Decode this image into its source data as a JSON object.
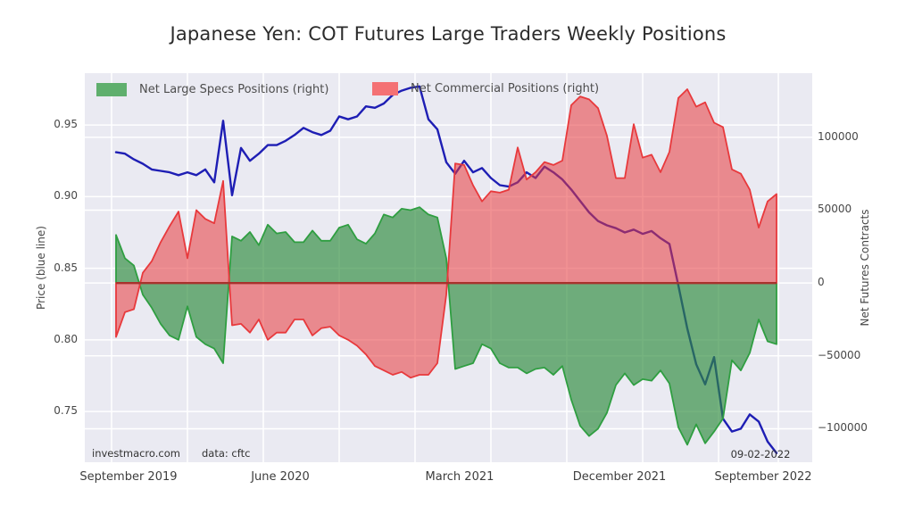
{
  "header": {
    "title": "Japanese Yen: COT Futures Large Traders Weekly Positions"
  },
  "legend": [
    {
      "label": "Net Large Specs Positions (right)",
      "color": "#5faf6d"
    },
    {
      "label": "Net Commercial Positions (right)",
      "color": "#f47174"
    }
  ],
  "annotations": {
    "watermark": "investmacro.com",
    "source": "data: cftc",
    "last_date": "09-02-2022"
  },
  "chart_data": {
    "type": "line+area",
    "title": "Japanese Yen: COT Futures Large Traders Weekly Positions",
    "x": {
      "points": 75,
      "span": "weekly positions, September 2019 to September 2022",
      "tick_labels": [
        "September 2019",
        "June 2020",
        "March 2021",
        "December 2021",
        "September 2022"
      ]
    },
    "axes": {
      "left": {
        "title": "Price (blue line)",
        "min": 0.7146,
        "max": 0.9862,
        "ticks": [
          {
            "label": "0.95",
            "value": 0.95
          },
          {
            "label": "0.90",
            "value": 0.9
          },
          {
            "label": "0.85",
            "value": 0.85
          },
          {
            "label": "0.80",
            "value": 0.8
          },
          {
            "label": "0.75",
            "value": 0.75
          }
        ]
      },
      "right": {
        "title": "Net Futures Contracts",
        "min": -123000,
        "max": 144000,
        "ticks": [
          {
            "label": "100000",
            "value": 100000
          },
          {
            "label": "50000",
            "value": 50000
          },
          {
            "label": "0",
            "value": 0
          },
          {
            "label": "−50000",
            "value": -50000
          },
          {
            "label": "−100000",
            "value": -100000
          }
        ]
      }
    },
    "colors": {
      "plot_bg": "#eaeaf2",
      "grid": "#ffffff",
      "price_line": "#1e1eb4",
      "specs_fill": "#2e8c3c",
      "specs_edge": "#2f9e41",
      "comm_fill": "#e8393c",
      "comm_edge": "#e8393c",
      "zero_line": "#a8322c"
    },
    "zero_line": 0,
    "series": [
      {
        "name": "Price (blue line)",
        "axis": "left",
        "type": "line",
        "values": [
          0.931,
          0.93,
          0.926,
          0.923,
          0.919,
          0.918,
          0.917,
          0.915,
          0.917,
          0.915,
          0.919,
          0.91,
          0.953,
          0.901,
          0.934,
          0.925,
          0.93,
          0.936,
          0.936,
          0.939,
          0.943,
          0.948,
          0.945,
          0.943,
          0.946,
          0.956,
          0.954,
          0.956,
          0.963,
          0.962,
          0.965,
          0.971,
          0.974,
          0.976,
          0.977,
          0.954,
          0.947,
          0.924,
          0.916,
          0.925,
          0.917,
          0.92,
          0.913,
          0.908,
          0.907,
          0.91,
          0.917,
          0.913,
          0.921,
          0.917,
          0.912,
          0.905,
          0.897,
          0.889,
          0.883,
          0.88,
          0.878,
          0.875,
          0.877,
          0.874,
          0.876,
          0.871,
          0.867,
          0.838,
          0.808,
          0.783,
          0.769,
          0.788,
          0.745,
          0.736,
          0.738,
          0.748,
          0.743,
          0.729,
          0.721
        ]
      },
      {
        "name": "Net Large Specs Positions (right)",
        "axis": "right",
        "type": "area",
        "fill_opacity": 0.66,
        "values": [
          33000,
          17000,
          12000,
          -8000,
          -17000,
          -28000,
          -36000,
          -39000,
          -16000,
          -37000,
          -42000,
          -45000,
          -55000,
          32000,
          29000,
          35000,
          26000,
          40000,
          34000,
          35000,
          28000,
          28000,
          36000,
          29000,
          29000,
          38000,
          40000,
          30000,
          27000,
          34000,
          47000,
          45000,
          51000,
          50000,
          52000,
          47000,
          45000,
          17000,
          -59000,
          -57000,
          -55000,
          -42000,
          -45000,
          -55000,
          -58000,
          -58000,
          -62000,
          -59000,
          -58000,
          -63000,
          -57000,
          -80000,
          -98000,
          -105000,
          -100000,
          -89000,
          -70000,
          -62000,
          -70000,
          -66000,
          -67000,
          -60000,
          -69000,
          -99000,
          -111000,
          -97000,
          -110000,
          -102000,
          -93000,
          -53000,
          -60000,
          -48000,
          -25000,
          -40000,
          -42000
        ]
      },
      {
        "name": "Net Commercial Positions (right)",
        "axis": "right",
        "type": "area",
        "fill_opacity": 0.55,
        "values": [
          -37000,
          -20000,
          -18000,
          7000,
          15000,
          28000,
          39000,
          49000,
          17000,
          50000,
          44000,
          41000,
          70000,
          -29000,
          -28000,
          -34000,
          -25000,
          -39000,
          -34000,
          -34000,
          -25000,
          -25000,
          -36000,
          -31000,
          -30000,
          -36000,
          -39000,
          -43000,
          -49000,
          -57000,
          -60000,
          -63000,
          -61000,
          -65000,
          -63000,
          -63000,
          -55000,
          -8000,
          82000,
          81000,
          67000,
          56000,
          63000,
          62000,
          64000,
          93000,
          71000,
          76000,
          83000,
          81000,
          84000,
          122000,
          128000,
          126000,
          120000,
          101000,
          72000,
          72000,
          109000,
          86000,
          88000,
          76000,
          90000,
          127000,
          133000,
          121000,
          124000,
          110000,
          107000,
          78000,
          75000,
          64000,
          38000,
          56000,
          61000
        ]
      }
    ]
  }
}
